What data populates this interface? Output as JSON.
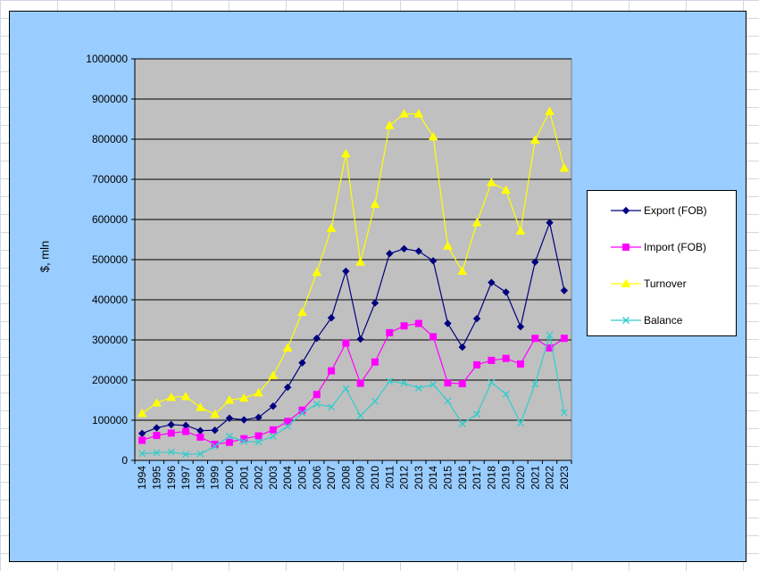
{
  "chart_data": {
    "type": "line",
    "ylabel": "$, mln",
    "ylim": [
      0,
      1000000
    ],
    "yticks": [
      0,
      100000,
      200000,
      300000,
      400000,
      500000,
      600000,
      700000,
      800000,
      900000,
      1000000
    ],
    "grid": "horizontal",
    "legend_position": "right",
    "x": [
      "1994",
      "1995",
      "1996",
      "1997",
      "1998",
      "1999",
      "2000",
      "2001",
      "2002",
      "2003",
      "2004",
      "2005",
      "2006",
      "2007",
      "2008",
      "2009",
      "2010",
      "2011",
      "2012",
      "2013",
      "2014",
      "2015",
      "2016",
      "2017",
      "2018",
      "2019",
      "2020",
      "2021",
      "2022",
      "2023"
    ],
    "series": [
      {
        "name": "Export (FOB)",
        "color": "#000080",
        "marker": "diamond",
        "values": [
          67000,
          81000,
          89000,
          87000,
          74000,
          75000,
          105000,
          101000,
          107000,
          135000,
          182000,
          243000,
          304000,
          355000,
          471000,
          302000,
          392000,
          515000,
          527000,
          521000,
          497000,
          341000,
          282000,
          353000,
          443000,
          419000,
          333000,
          494000,
          592000,
          423000
        ]
      },
      {
        "name": "Import (FOB)",
        "color": "#ff00ff",
        "marker": "square",
        "values": [
          50000,
          62000,
          68000,
          72000,
          58000,
          40000,
          45000,
          54000,
          61000,
          76000,
          97000,
          125000,
          164000,
          223000,
          292000,
          192000,
          245000,
          318000,
          335000,
          341000,
          308000,
          193000,
          191000,
          238000,
          249000,
          254000,
          240000,
          304000,
          280000,
          304000
        ]
      },
      {
        "name": "Turnover",
        "color": "#ffff00",
        "marker": "triangle",
        "values": [
          117000,
          143000,
          157000,
          159000,
          132000,
          115000,
          150000,
          155000,
          168000,
          211000,
          280000,
          369000,
          468000,
          578000,
          764000,
          494000,
          638000,
          834000,
          863000,
          863000,
          806000,
          534000,
          471000,
          592000,
          692000,
          673000,
          571000,
          798000,
          869000,
          728000
        ]
      },
      {
        "name": "Balance",
        "color": "#33cccc",
        "marker": "x",
        "values": [
          17000,
          19000,
          21000,
          15000,
          16000,
          35000,
          60000,
          47000,
          46000,
          60000,
          85000,
          118000,
          140000,
          133000,
          179000,
          111000,
          147000,
          197000,
          192000,
          180000,
          189000,
          148000,
          91000,
          115000,
          194000,
          165000,
          93000,
          190000,
          312000,
          119000
        ]
      }
    ]
  }
}
